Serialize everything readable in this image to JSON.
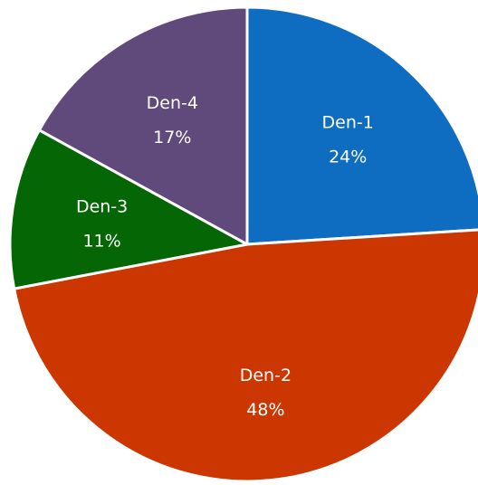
{
  "chart_data": {
    "type": "pie",
    "start_angle_deg": 0,
    "direction": "clockwise",
    "slices": [
      {
        "label": "Den-1",
        "value": 24,
        "value_label": "24%",
        "color": "#0F6DC1"
      },
      {
        "label": "Den-2",
        "value": 48,
        "value_label": "48%",
        "color": "#CC3600"
      },
      {
        "label": "Den-3",
        "value": 11,
        "value_label": "11%",
        "color": "#056605"
      },
      {
        "label": "Den-4",
        "value": 17,
        "value_label": "17%",
        "color": "#604A7B"
      }
    ]
  }
}
